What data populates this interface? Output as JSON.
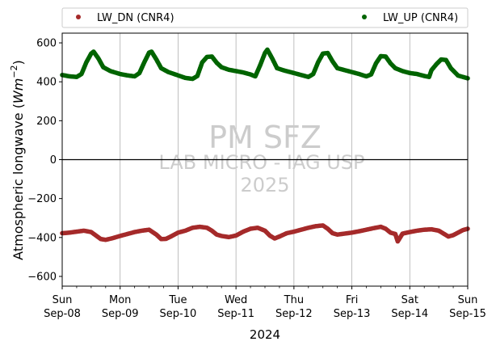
{
  "chart_data": {
    "type": "scatter",
    "ylabel": "Atmospheric longwave ($Wm^{-2}$)",
    "ylabel_text": "Atmospheric longwave (",
    "ylabel_unit_main": "Wm",
    "ylabel_unit_exp": "−2",
    "ylabel_close": ")",
    "xlabel": "2024",
    "ylim": [
      -650,
      650
    ],
    "yticks": [
      -600,
      -400,
      -200,
      0,
      200,
      400,
      600
    ],
    "xlim": [
      "2024-09-08 00:00",
      "2024-09-15 00:00"
    ],
    "xticks": [
      {
        "date": "2024-09-08",
        "dow": "Sun",
        "label": "Sep-08"
      },
      {
        "date": "2024-09-09",
        "dow": "Mon",
        "label": "Sep-09"
      },
      {
        "date": "2024-09-10",
        "dow": "Tue",
        "label": "Sep-10"
      },
      {
        "date": "2024-09-11",
        "dow": "Wed",
        "label": "Sep-11"
      },
      {
        "date": "2024-09-12",
        "dow": "Thu",
        "label": "Sep-12"
      },
      {
        "date": "2024-09-13",
        "dow": "Fri",
        "label": "Sep-13"
      },
      {
        "date": "2024-09-14",
        "dow": "Sat",
        "label": "Sep-14"
      },
      {
        "date": "2024-09-15",
        "dow": "Sun",
        "label": "Sep-15"
      }
    ],
    "grid": "x-major",
    "legend_position": "top",
    "zero_line": true,
    "watermark": {
      "line1": "PM SFZ",
      "line2": "LAB MICRO - IAG USP",
      "line3": "2025"
    },
    "series": [
      {
        "name": "LW_DN (CNR4)",
        "color": "#a52a2a",
        "points": [
          [
            "2024-09-08 00:00",
            -378
          ],
          [
            "2024-09-08 03:00",
            -375
          ],
          [
            "2024-09-08 06:00",
            -370
          ],
          [
            "2024-09-08 09:00",
            -365
          ],
          [
            "2024-09-08 12:00",
            -372
          ],
          [
            "2024-09-08 14:00",
            -390
          ],
          [
            "2024-09-08 16:00",
            -408
          ],
          [
            "2024-09-08 18:00",
            -412
          ],
          [
            "2024-09-08 21:00",
            -403
          ],
          [
            "2024-09-09 00:00",
            -392
          ],
          [
            "2024-09-09 03:00",
            -382
          ],
          [
            "2024-09-09 06:00",
            -372
          ],
          [
            "2024-09-09 09:00",
            -365
          ],
          [
            "2024-09-09 12:00",
            -360
          ],
          [
            "2024-09-09 15:00",
            -385
          ],
          [
            "2024-09-09 17:00",
            -408
          ],
          [
            "2024-09-09 19:00",
            -407
          ],
          [
            "2024-09-09 21:00",
            -395
          ],
          [
            "2024-09-10 00:00",
            -375
          ],
          [
            "2024-09-10 03:00",
            -365
          ],
          [
            "2024-09-10 06:00",
            -350
          ],
          [
            "2024-09-10 09:00",
            -345
          ],
          [
            "2024-09-10 12:00",
            -350
          ],
          [
            "2024-09-10 14:00",
            -365
          ],
          [
            "2024-09-10 16:00",
            -385
          ],
          [
            "2024-09-10 18:00",
            -392
          ],
          [
            "2024-09-10 21:00",
            -398
          ],
          [
            "2024-09-11 00:00",
            -390
          ],
          [
            "2024-09-11 03:00",
            -370
          ],
          [
            "2024-09-11 06:00",
            -355
          ],
          [
            "2024-09-11 09:00",
            -350
          ],
          [
            "2024-09-11 12:00",
            -365
          ],
          [
            "2024-09-11 14:00",
            -390
          ],
          [
            "2024-09-11 16:00",
            -405
          ],
          [
            "2024-09-11 18:00",
            -395
          ],
          [
            "2024-09-11 21:00",
            -378
          ],
          [
            "2024-09-12 00:00",
            -370
          ],
          [
            "2024-09-12 03:00",
            -360
          ],
          [
            "2024-09-12 06:00",
            -350
          ],
          [
            "2024-09-12 09:00",
            -342
          ],
          [
            "2024-09-12 12:00",
            -338
          ],
          [
            "2024-09-12 14:00",
            -355
          ],
          [
            "2024-09-12 16:00",
            -378
          ],
          [
            "2024-09-12 18:00",
            -385
          ],
          [
            "2024-09-12 21:00",
            -380
          ],
          [
            "2024-09-13 00:00",
            -375
          ],
          [
            "2024-09-13 03:00",
            -368
          ],
          [
            "2024-09-13 06:00",
            -360
          ],
          [
            "2024-09-13 09:00",
            -352
          ],
          [
            "2024-09-13 12:00",
            -345
          ],
          [
            "2024-09-13 14:00",
            -355
          ],
          [
            "2024-09-13 16:00",
            -375
          ],
          [
            "2024-09-13 18:00",
            -382
          ],
          [
            "2024-09-13 19:00",
            -420
          ],
          [
            "2024-09-13 21:00",
            -380
          ],
          [
            "2024-09-14 00:00",
            -372
          ],
          [
            "2024-09-14 03:00",
            -365
          ],
          [
            "2024-09-14 06:00",
            -360
          ],
          [
            "2024-09-14 09:00",
            -358
          ],
          [
            "2024-09-14 12:00",
            -365
          ],
          [
            "2024-09-14 14:00",
            -380
          ],
          [
            "2024-09-14 16:00",
            -395
          ],
          [
            "2024-09-14 18:00",
            -388
          ],
          [
            "2024-09-14 20:00",
            -375
          ],
          [
            "2024-09-14 22:00",
            -362
          ],
          [
            "2024-09-15 00:00",
            -355
          ]
        ]
      },
      {
        "name": "LW_UP (CNR4)",
        "color": "#006400",
        "points": [
          [
            "2024-09-08 00:00",
            435
          ],
          [
            "2024-09-08 03:00",
            428
          ],
          [
            "2024-09-08 06:00",
            425
          ],
          [
            "2024-09-08 08:00",
            440
          ],
          [
            "2024-09-08 10:00",
            500
          ],
          [
            "2024-09-08 12:00",
            545
          ],
          [
            "2024-09-08 13:00",
            555
          ],
          [
            "2024-09-08 15:00",
            520
          ],
          [
            "2024-09-08 17:00",
            475
          ],
          [
            "2024-09-08 20:00",
            455
          ],
          [
            "2024-09-09 00:00",
            440
          ],
          [
            "2024-09-09 03:00",
            433
          ],
          [
            "2024-09-09 06:00",
            428
          ],
          [
            "2024-09-09 08:00",
            445
          ],
          [
            "2024-09-09 10:00",
            500
          ],
          [
            "2024-09-09 12:00",
            550
          ],
          [
            "2024-09-09 13:00",
            555
          ],
          [
            "2024-09-09 15:00",
            515
          ],
          [
            "2024-09-09 17:00",
            470
          ],
          [
            "2024-09-09 20:00",
            450
          ],
          [
            "2024-09-10 00:00",
            433
          ],
          [
            "2024-09-10 03:00",
            420
          ],
          [
            "2024-09-10 06:00",
            415
          ],
          [
            "2024-09-10 08:00",
            430
          ],
          [
            "2024-09-10 10:00",
            500
          ],
          [
            "2024-09-10 12:00",
            528
          ],
          [
            "2024-09-10 14:00",
            530
          ],
          [
            "2024-09-10 16:00",
            498
          ],
          [
            "2024-09-10 18:00",
            475
          ],
          [
            "2024-09-10 21:00",
            462
          ],
          [
            "2024-09-11 00:00",
            455
          ],
          [
            "2024-09-11 03:00",
            448
          ],
          [
            "2024-09-11 06:00",
            438
          ],
          [
            "2024-09-11 08:00",
            428
          ],
          [
            "2024-09-11 10:00",
            485
          ],
          [
            "2024-09-11 12:00",
            548
          ],
          [
            "2024-09-11 13:00",
            565
          ],
          [
            "2024-09-11 15:00",
            520
          ],
          [
            "2024-09-11 17:00",
            470
          ],
          [
            "2024-09-11 20:00",
            458
          ],
          [
            "2024-09-12 00:00",
            445
          ],
          [
            "2024-09-12 03:00",
            435
          ],
          [
            "2024-09-12 06:00",
            425
          ],
          [
            "2024-09-12 08:00",
            440
          ],
          [
            "2024-09-12 10:00",
            500
          ],
          [
            "2024-09-12 12:00",
            545
          ],
          [
            "2024-09-12 14:00",
            548
          ],
          [
            "2024-09-12 16:00",
            505
          ],
          [
            "2024-09-12 18:00",
            470
          ],
          [
            "2024-09-12 21:00",
            460
          ],
          [
            "2024-09-13 00:00",
            450
          ],
          [
            "2024-09-13 03:00",
            440
          ],
          [
            "2024-09-13 06:00",
            428
          ],
          [
            "2024-09-13 08:00",
            438
          ],
          [
            "2024-09-13 10:00",
            495
          ],
          [
            "2024-09-13 12:00",
            532
          ],
          [
            "2024-09-13 14:00",
            530
          ],
          [
            "2024-09-13 16:00",
            495
          ],
          [
            "2024-09-13 18:00",
            470
          ],
          [
            "2024-09-13 21:00",
            455
          ],
          [
            "2024-09-14 00:00",
            445
          ],
          [
            "2024-09-14 03:00",
            440
          ],
          [
            "2024-09-14 06:00",
            430
          ],
          [
            "2024-09-14 08:00",
            425
          ],
          [
            "2024-09-14 09:00",
            460
          ],
          [
            "2024-09-14 11:00",
            490
          ],
          [
            "2024-09-14 13:00",
            515
          ],
          [
            "2024-09-14 15:00",
            512
          ],
          [
            "2024-09-14 17:00",
            470
          ],
          [
            "2024-09-14 20:00",
            432
          ],
          [
            "2024-09-15 00:00",
            418
          ]
        ]
      }
    ]
  }
}
